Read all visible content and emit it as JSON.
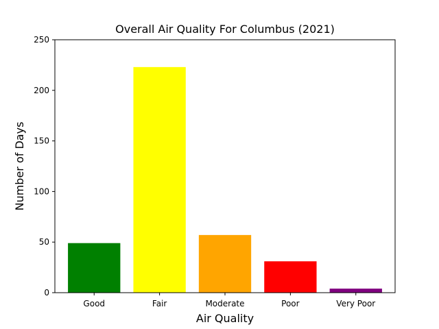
{
  "chart_data": {
    "type": "bar",
    "title": "Overall Air Quality For Columbus (2021)",
    "xlabel": "Air Quality",
    "ylabel": "Number of Days",
    "categories": [
      "Good",
      "Fair",
      "Moderate",
      "Poor",
      "Very Poor"
    ],
    "values": [
      49,
      223,
      57,
      31,
      4
    ],
    "colors": [
      "#008000",
      "#ffff00",
      "#ffa500",
      "#ff0000",
      "#800080"
    ],
    "ylim": [
      0,
      250
    ],
    "yticks": [
      0,
      50,
      100,
      150,
      200,
      250
    ],
    "grid": false
  }
}
